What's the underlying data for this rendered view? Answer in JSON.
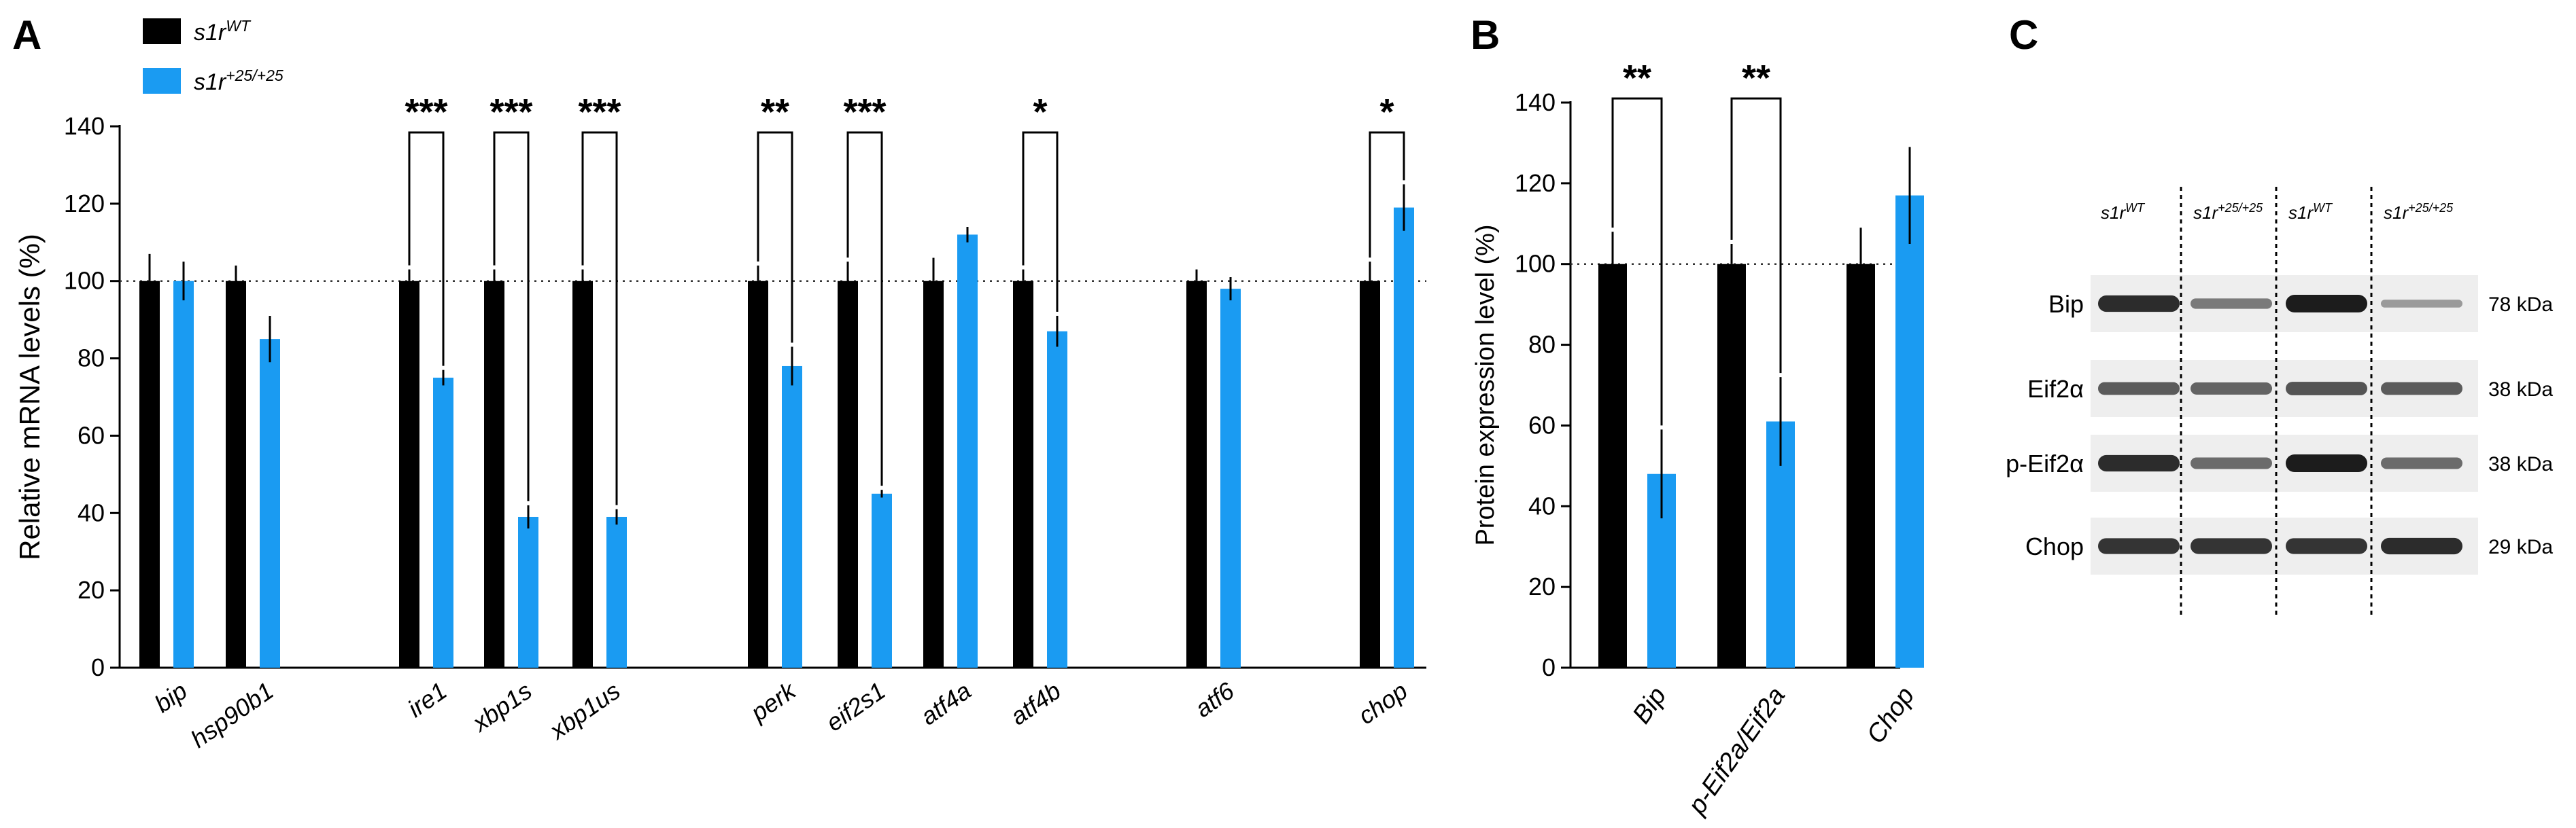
{
  "colors": {
    "wt": "#000000",
    "mut": "#1a9bf2",
    "axis": "#000000",
    "blot_bg": "#eeeeee",
    "band": "#1c1c1c",
    "dotted": "#333333"
  },
  "panels": {
    "a": {
      "letter": "A"
    },
    "b": {
      "letter": "B"
    },
    "c": {
      "letter": "C"
    }
  },
  "legend": {
    "items": [
      {
        "name": "s1r",
        "sup": "WT",
        "color": "#000000"
      },
      {
        "name": "s1r",
        "sup": "+25/+25",
        "color": "#1a9bf2"
      }
    ]
  },
  "chart_data": [
    {
      "id": "A",
      "type": "bar",
      "ylabel": "Relative mRNA levels (%)",
      "ylim": [
        0,
        140
      ],
      "yticks": [
        0,
        20,
        40,
        60,
        80,
        100,
        120,
        140
      ],
      "reference_line": 100,
      "categories": [
        "bip",
        "hsp90b1",
        "ire1",
        "xbp1s",
        "xbp1us",
        "perk",
        "eif2s1",
        "atf4a",
        "atf4b",
        "atf6",
        "chop"
      ],
      "category_groups": [
        [
          0,
          1
        ],
        [
          2,
          3,
          4
        ],
        [
          5,
          6,
          7,
          8
        ],
        [
          9
        ],
        [
          10
        ]
      ],
      "series": [
        {
          "name": "s1rWT",
          "color": "#000000",
          "values": [
            100,
            100,
            100,
            100,
            100,
            100,
            100,
            100,
            100,
            100,
            100
          ],
          "errors": [
            7,
            4,
            3,
            3,
            3,
            4,
            5,
            6,
            3,
            3,
            5
          ]
        },
        {
          "name": "s1r+25/+25",
          "color": "#1a9bf2",
          "values": [
            100,
            85,
            75,
            39,
            39,
            78,
            45,
            112,
            87,
            98,
            119
          ],
          "errors": [
            5,
            6,
            2,
            3,
            2,
            5,
            1,
            2,
            4,
            3,
            6
          ]
        }
      ],
      "significance": [
        {
          "category": 2,
          "label": "***"
        },
        {
          "category": 3,
          "label": "***"
        },
        {
          "category": 4,
          "label": "***"
        },
        {
          "category": 5,
          "label": "**"
        },
        {
          "category": 6,
          "label": "***"
        },
        {
          "category": 8,
          "label": "*"
        },
        {
          "category": 10,
          "label": "*"
        }
      ]
    },
    {
      "id": "B",
      "type": "bar",
      "ylabel": "Protein expression level (%)",
      "ylim": [
        0,
        140
      ],
      "yticks": [
        0,
        20,
        40,
        60,
        80,
        100,
        120,
        140
      ],
      "reference_line": 100,
      "categories": [
        "Bip",
        "p-Eif2a/Eif2a",
        "Chop"
      ],
      "series": [
        {
          "name": "s1rWT",
          "color": "#000000",
          "values": [
            100,
            100,
            100
          ],
          "errors": [
            8,
            5,
            9
          ]
        },
        {
          "name": "s1r+25/+25",
          "color": "#1a9bf2",
          "values": [
            48,
            61,
            117
          ],
          "errors": [
            11,
            11,
            12
          ]
        }
      ],
      "significance": [
        {
          "category": 0,
          "label": "**"
        },
        {
          "category": 1,
          "label": "**"
        }
      ]
    }
  ],
  "blot": {
    "lanes": [
      {
        "name": "s1r",
        "sup": "WT"
      },
      {
        "name": "s1r",
        "sup": "+25/+25"
      },
      {
        "name": "s1r",
        "sup": "WT"
      },
      {
        "name": "s1r",
        "sup": "+25/+25"
      }
    ],
    "rows": [
      {
        "label": "Bip",
        "kda": "78 kDa",
        "intensities": [
          0.9,
          0.4,
          1.0,
          0.2
        ]
      },
      {
        "label": "Eif2α",
        "kda": "38 kDa",
        "intensities": [
          0.6,
          0.55,
          0.65,
          0.6
        ]
      },
      {
        "label": "p-Eif2α",
        "kda": "38 kDa",
        "intensities": [
          0.9,
          0.5,
          1.0,
          0.5
        ]
      },
      {
        "label": "Chop",
        "kda": "29 kDa",
        "intensities": [
          0.85,
          0.85,
          0.85,
          0.9
        ]
      }
    ]
  }
}
